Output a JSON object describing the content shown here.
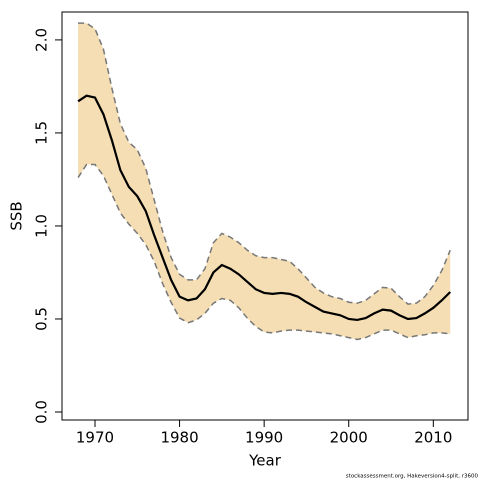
{
  "chart_data": {
    "type": "line",
    "x_label": "Year",
    "y_label": "SSB",
    "footnote": "stockassessment.org, Hakeversion4-split, r3600",
    "x": [
      1968,
      1969,
      1970,
      1971,
      1972,
      1973,
      1974,
      1975,
      1976,
      1977,
      1978,
      1979,
      1980,
      1981,
      1982,
      1983,
      1984,
      1985,
      1986,
      1987,
      1988,
      1989,
      1990,
      1991,
      1992,
      1993,
      1994,
      1995,
      1996,
      1997,
      1998,
      1999,
      2000,
      2001,
      2002,
      2003,
      2004,
      2005,
      2006,
      2007,
      2008,
      2009,
      2010,
      2011,
      2012
    ],
    "values": [
      1.67,
      1.7,
      1.69,
      1.6,
      1.46,
      1.3,
      1.21,
      1.16,
      1.08,
      0.95,
      0.83,
      0.71,
      0.62,
      0.6,
      0.61,
      0.66,
      0.75,
      0.79,
      0.77,
      0.74,
      0.7,
      0.66,
      0.64,
      0.635,
      0.64,
      0.635,
      0.62,
      0.59,
      0.565,
      0.54,
      0.53,
      0.52,
      0.5,
      0.495,
      0.505,
      0.53,
      0.55,
      0.545,
      0.52,
      0.5,
      0.505,
      0.53,
      0.56,
      0.6,
      0.645
    ],
    "upper": [
      2.09,
      2.09,
      2.06,
      1.95,
      1.74,
      1.55,
      1.45,
      1.41,
      1.31,
      1.14,
      0.97,
      0.83,
      0.74,
      0.71,
      0.71,
      0.77,
      0.91,
      0.96,
      0.94,
      0.91,
      0.87,
      0.84,
      0.83,
      0.83,
      0.82,
      0.81,
      0.77,
      0.72,
      0.67,
      0.64,
      0.62,
      0.61,
      0.59,
      0.585,
      0.6,
      0.635,
      0.67,
      0.665,
      0.62,
      0.58,
      0.585,
      0.62,
      0.68,
      0.76,
      0.87
    ],
    "lower": [
      1.26,
      1.33,
      1.33,
      1.27,
      1.17,
      1.07,
      1.01,
      0.96,
      0.9,
      0.81,
      0.69,
      0.59,
      0.505,
      0.48,
      0.495,
      0.53,
      0.585,
      0.61,
      0.6,
      0.56,
      0.505,
      0.46,
      0.43,
      0.425,
      0.435,
      0.44,
      0.44,
      0.435,
      0.43,
      0.425,
      0.42,
      0.41,
      0.4,
      0.39,
      0.4,
      0.42,
      0.44,
      0.44,
      0.42,
      0.4,
      0.41,
      0.415,
      0.425,
      0.425,
      0.42
    ],
    "color": "#000000",
    "band_color": "#f5deb3",
    "bound_color": "#777777",
    "xlim": [
      1966.1,
      2014.1
    ],
    "ylim": [
      -0.043,
      2.15
    ],
    "xticks": [
      1970,
      1980,
      1990,
      2000,
      2010
    ],
    "yticks": [
      {
        "value": 0,
        "label": "0.0"
      },
      0.5,
      {
        "value": 1,
        "label": "1.0"
      },
      1.5,
      {
        "value": 2,
        "label": "2.0"
      }
    ],
    "grid": false
  }
}
